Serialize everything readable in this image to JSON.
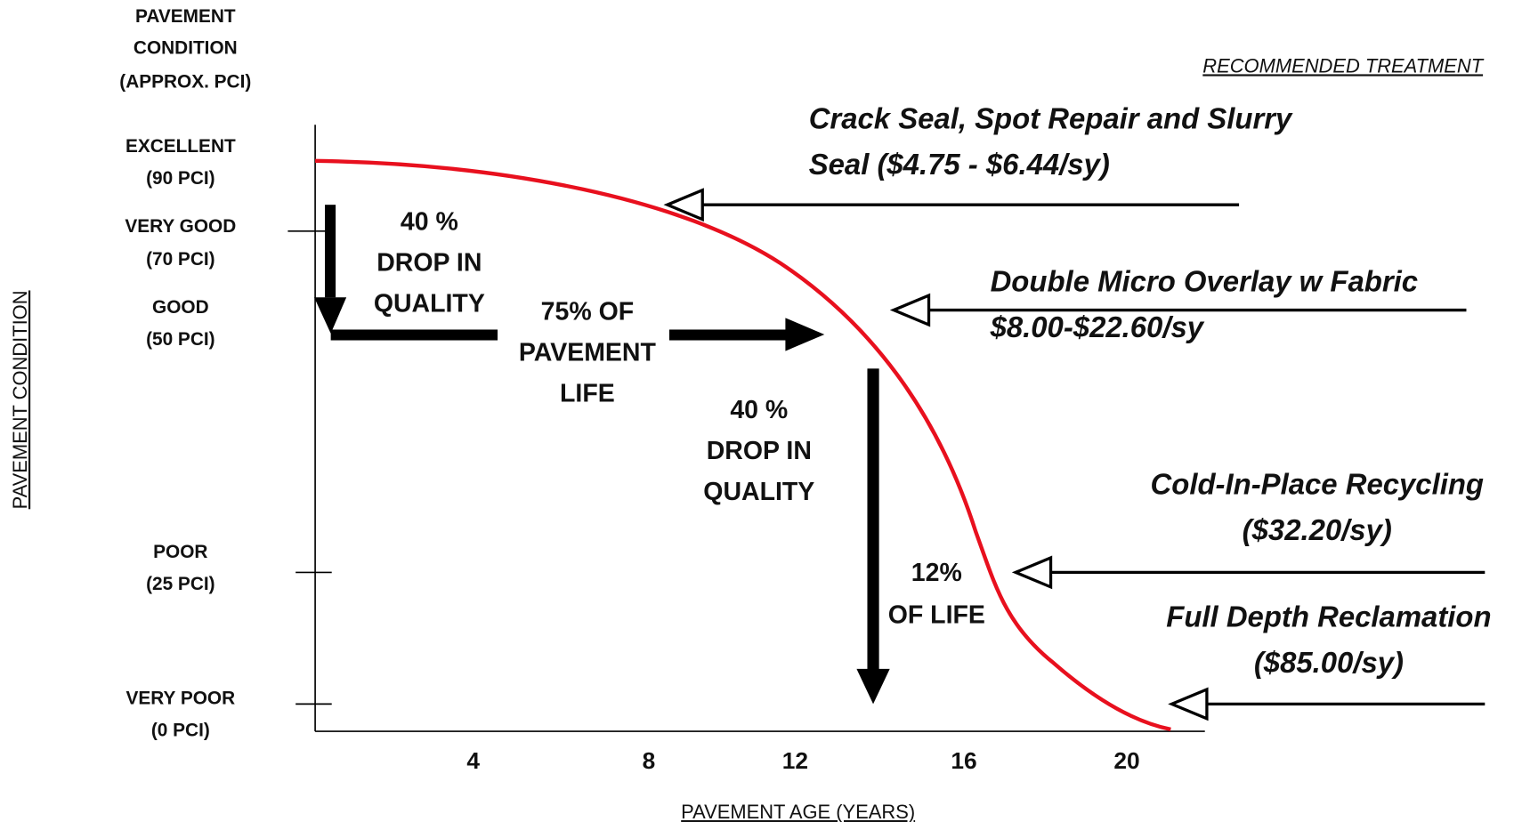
{
  "y_axis": {
    "header": [
      "PAVEMENT",
      "CONDITION",
      "(APPROX. PCI)"
    ],
    "title": "PAVEMENT CONDITION",
    "levels": [
      [
        "EXCELLENT",
        "(90 PCI)"
      ],
      [
        "VERY GOOD",
        "(70 PCI)"
      ],
      [
        "GOOD",
        "(50 PCI)"
      ],
      [
        "POOR",
        "(25 PCI)"
      ],
      [
        "VERY POOR",
        "(0 PCI)"
      ]
    ]
  },
  "x_axis": {
    "title": "PAVEMENT AGE (YEARS)",
    "ticks": [
      "4",
      "8",
      "12",
      "16",
      "20"
    ]
  },
  "treatments_header": "RECOMMENDED TREATMENT",
  "treatments": [
    [
      "Crack Seal, Spot Repair and Slurry",
      "Seal ($4.75 - $6.44/sy)"
    ],
    [
      "Double Micro Overlay w Fabric",
      "$8.00-$22.60/sy"
    ],
    [
      "Cold-In-Place Recycling",
      "($32.20/sy)"
    ],
    [
      "Full Depth Reclamation",
      "($85.00/sy)"
    ]
  ],
  "annotations": [
    [
      "40 %",
      "DROP IN",
      "QUALITY"
    ],
    [
      "75% OF",
      "PAVEMENT",
      "LIFE"
    ],
    [
      "40 %",
      "DROP IN",
      "QUALITY"
    ],
    [
      "12%",
      "OF LIFE"
    ]
  ]
}
